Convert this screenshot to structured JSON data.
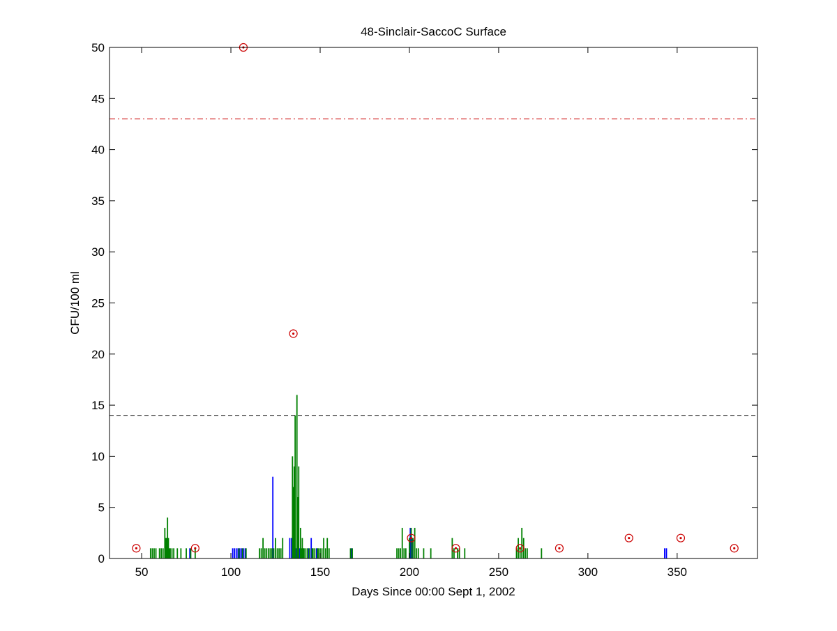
{
  "chart_data": {
    "type": "bar",
    "title": "48-Sinclair-SaccoC Surface",
    "xlabel": "Days Since 00:00 Sept 1, 2002",
    "ylabel": "CFU/100 ml",
    "xlim": [
      32,
      395
    ],
    "ylim": [
      0,
      50
    ],
    "xticks": [
      50,
      100,
      150,
      200,
      250,
      300,
      350
    ],
    "yticks": [
      0,
      5,
      10,
      15,
      20,
      25,
      30,
      35,
      40,
      45,
      50
    ],
    "grid": false,
    "legend": "none",
    "reference_lines": [
      {
        "y": 43,
        "style": "dash-dot",
        "color": "#cc0000"
      },
      {
        "y": 14,
        "style": "dashed",
        "color": "#000000"
      }
    ],
    "series": [
      {
        "color": "#0000ff",
        "x": [
          77,
          101,
          102,
          103,
          104,
          105,
          106,
          107,
          108,
          123.5,
          133,
          134,
          136.5,
          138.5,
          143.5,
          145,
          148,
          167.5,
          200.5,
          201.5,
          343,
          344
        ],
        "values": [
          1,
          1,
          1,
          1,
          1,
          1,
          1,
          1,
          1,
          8,
          2,
          2,
          1,
          1,
          1,
          2,
          1,
          1,
          3,
          2,
          1,
          1
        ]
      },
      {
        "color": "#008000",
        "x": [
          55,
          56,
          57,
          58,
          60,
          61,
          62,
          63,
          63.5,
          64,
          64.5,
          65,
          65.5,
          66,
          67,
          68,
          70,
          72,
          75,
          77.5,
          80,
          104.5,
          106.5,
          108.5,
          116,
          117,
          118,
          119,
          120,
          121,
          122,
          123,
          124,
          125,
          126,
          127,
          128,
          129,
          134.5,
          135,
          135.5,
          136,
          137,
          137.5,
          138,
          139,
          139.5,
          140,
          140.5,
          141,
          142,
          143,
          144,
          145.5,
          146,
          147,
          148.5,
          149,
          150,
          151,
          152,
          153,
          154,
          155,
          167,
          168,
          193,
          194,
          195,
          196,
          197,
          198,
          200,
          201,
          202,
          203,
          204,
          205,
          208,
          212,
          224,
          225,
          227,
          228,
          231,
          260,
          261,
          262,
          263,
          264,
          265,
          266,
          274
        ],
        "values": [
          1,
          1,
          1,
          1,
          1,
          1,
          1,
          3,
          2,
          2,
          4,
          2,
          1,
          1,
          1,
          1,
          1,
          1,
          1,
          1,
          1,
          1,
          1,
          1,
          1,
          1,
          2,
          1,
          1,
          1,
          1,
          1,
          1,
          2,
          1,
          1,
          1,
          2,
          10,
          7,
          9,
          14,
          16,
          6,
          9,
          3,
          1,
          2,
          1,
          1,
          1,
          1,
          1,
          1,
          1,
          1,
          1,
          1,
          1,
          1,
          2,
          1,
          2,
          1,
          1,
          1,
          1,
          1,
          1,
          3,
          1,
          1,
          2,
          3,
          2,
          3,
          1,
          1,
          1,
          1,
          2,
          1,
          1,
          1,
          1,
          1,
          2,
          1,
          3,
          2,
          1,
          1,
          1
        ]
      }
    ],
    "markers": {
      "color": "#cc0000",
      "style": "circled-dot",
      "x": [
        47,
        80,
        107,
        135,
        201,
        226,
        262,
        284,
        323,
        352,
        382
      ],
      "y": [
        1,
        1,
        50,
        22,
        2,
        1,
        1,
        1,
        2,
        2,
        1
      ]
    }
  }
}
